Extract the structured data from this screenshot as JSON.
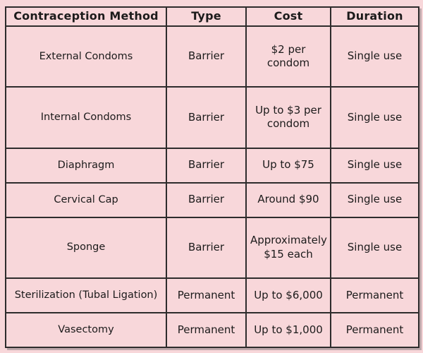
{
  "colors": {
    "background": "#f8d7da",
    "border": "#2e2c2c",
    "text": "#1c1b1b"
  },
  "table": {
    "headers": [
      "Contraception Method",
      "Type",
      "Cost",
      "Duration"
    ],
    "rows": [
      {
        "method": "External Condoms",
        "type": "Barrier",
        "cost": "$2 per condom",
        "duration": "Single use"
      },
      {
        "method": "Internal Condoms",
        "type": "Barrier",
        "cost": "Up to $3 per condom",
        "duration": "Single use"
      },
      {
        "method": "Diaphragm",
        "type": "Barrier",
        "cost": "Up to $75",
        "duration": "Single use"
      },
      {
        "method": "Cervical Cap",
        "type": "Barrier",
        "cost": "Around $90",
        "duration": "Single use"
      },
      {
        "method": "Sponge",
        "type": "Barrier",
        "cost": "Approximately $15 each",
        "duration": "Single use"
      },
      {
        "method": "Sterilization (Tubal Ligation)",
        "type": "Permanent",
        "cost": "Up to $6,000",
        "duration": "Permanent"
      },
      {
        "method": "Vasectomy",
        "type": "Permanent",
        "cost": "Up to $1,000",
        "duration": "Permanent"
      }
    ]
  }
}
